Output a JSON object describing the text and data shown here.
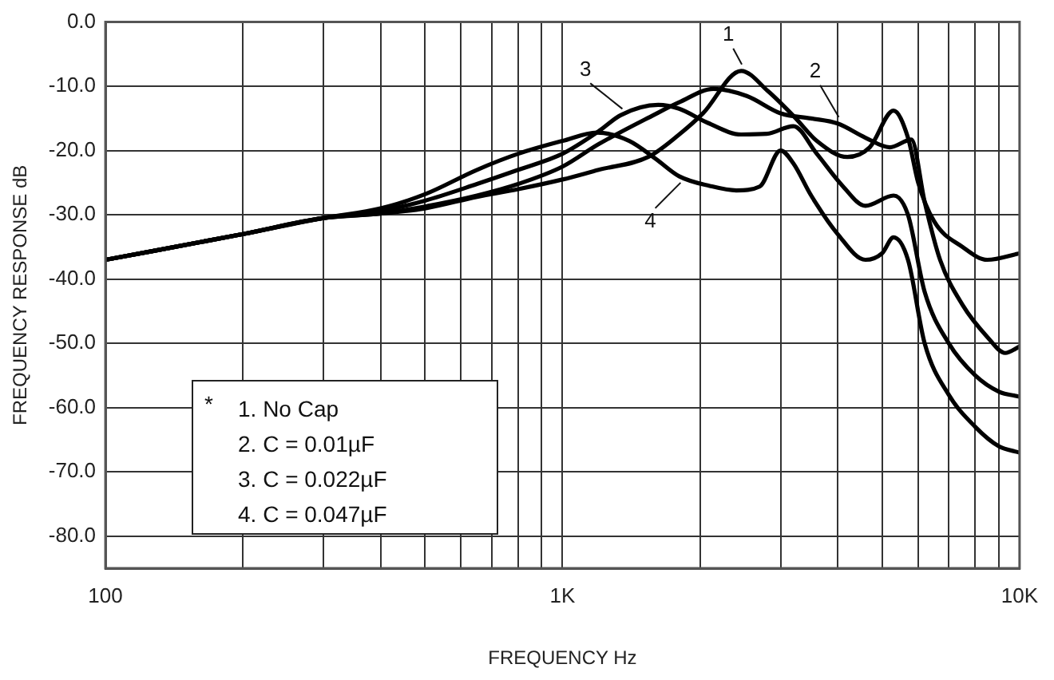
{
  "chart_data": {
    "type": "line",
    "xlabel": "FREQUENCY Hz",
    "ylabel": "FREQUENCY RESPONSE dB",
    "log": "x",
    "grid": true,
    "marker": "none",
    "line_style": "solid",
    "legend": false,
    "xlim": [
      100,
      10000
    ],
    "ylim": [
      -85,
      0
    ],
    "xticks": [
      {
        "value": 100,
        "label": "100"
      },
      {
        "value": 200,
        "label": null
      },
      {
        "value": 300,
        "label": null
      },
      {
        "value": 400,
        "label": null
      },
      {
        "value": 500,
        "label": null
      },
      {
        "value": 600,
        "label": null
      },
      {
        "value": 700,
        "label": null
      },
      {
        "value": 800,
        "label": null
      },
      {
        "value": 900,
        "label": null
      },
      {
        "value": 1000,
        "label": "1K"
      },
      {
        "value": 2000,
        "label": null
      },
      {
        "value": 3000,
        "label": null
      },
      {
        "value": 4000,
        "label": null
      },
      {
        "value": 5000,
        "label": null
      },
      {
        "value": 6000,
        "label": null
      },
      {
        "value": 7000,
        "label": null
      },
      {
        "value": 8000,
        "label": null
      },
      {
        "value": 9000,
        "label": null
      },
      {
        "value": 10000,
        "label": "10K"
      }
    ],
    "yticks": [
      {
        "value": 0,
        "label": "0.0"
      },
      {
        "value": -10,
        "label": "-10.0"
      },
      {
        "value": -20,
        "label": "-20.0"
      },
      {
        "value": -30,
        "label": "-30.0"
      },
      {
        "value": -40,
        "label": "-40.0"
      },
      {
        "value": -50,
        "label": "-50.0"
      },
      {
        "value": -60,
        "label": "-60.0"
      },
      {
        "value": -70,
        "label": "-70.0"
      },
      {
        "value": -80,
        "label": "-80.0"
      }
    ],
    "annotations": [
      "*",
      "1. No Cap",
      "2. C = 0.01µF",
      "3. C = 0.022µF",
      "4. C = 0.047µF"
    ],
    "series": [
      {
        "name": "1",
        "color": "#000000",
        "x": [
          100,
          200,
          300,
          400,
          500,
          650,
          800,
          1000,
          1200,
          1540,
          1800,
          2030,
          2460,
          2820,
          3230,
          3600,
          4200,
          4700,
          5300,
          5700,
          6000,
          6500,
          7500,
          8500,
          10000
        ],
        "values": [
          -37,
          -33,
          -30.5,
          -29.8,
          -29,
          -27.2,
          -26,
          -24.5,
          -23,
          -21,
          -17.5,
          -14.2,
          -7.6,
          -10.8,
          -14.9,
          -18.5,
          -21,
          -19.5,
          -13.8,
          -18,
          -25,
          -31,
          -35,
          -37,
          -36
        ]
      },
      {
        "name": "2",
        "color": "#000000",
        "x": [
          100,
          200,
          300,
          400,
          500,
          650,
          800,
          1000,
          1200,
          1580,
          1800,
          2140,
          2530,
          3000,
          3500,
          4000,
          4600,
          5200,
          5800,
          6200,
          6700,
          7500,
          8500,
          9300,
          10000
        ],
        "values": [
          -37,
          -33,
          -30.5,
          -29.8,
          -28.7,
          -27,
          -25.2,
          -22.5,
          -19,
          -14.5,
          -12.5,
          -10.4,
          -11.5,
          -14.2,
          -15,
          -15.8,
          -18,
          -19.5,
          -18.3,
          -28,
          -37,
          -44,
          -49,
          -51.5,
          -50.5
        ]
      },
      {
        "name": "3",
        "color": "#000000",
        "x": [
          100,
          200,
          300,
          400,
          500,
          650,
          800,
          1000,
          1200,
          1340,
          1620,
          1800,
          2080,
          2460,
          2800,
          3200,
          3600,
          4100,
          4600,
          5300,
          5700,
          6200,
          7000,
          8000,
          9000,
          10000
        ],
        "values": [
          -37,
          -33,
          -30.5,
          -29.4,
          -27.8,
          -25.2,
          -23,
          -20.5,
          -17,
          -14.5,
          -12.9,
          -13.5,
          -15.7,
          -17.5,
          -17.4,
          -16.2,
          -20.5,
          -25.5,
          -28.6,
          -27,
          -30,
          -42,
          -50,
          -55,
          -57.5,
          -58.3
        ]
      },
      {
        "name": "4",
        "color": "#000000",
        "x": [
          100,
          200,
          300,
          400,
          500,
          650,
          800,
          1000,
          1190,
          1400,
          1600,
          1800,
          2100,
          2400,
          2700,
          3000,
          3200,
          3500,
          4000,
          4600,
          5000,
          5300,
          5700,
          6200,
          7000,
          8000,
          9000,
          10000
        ],
        "values": [
          -37,
          -33,
          -30.5,
          -29,
          -26.8,
          -23,
          -20.5,
          -18.5,
          -17.2,
          -18.5,
          -21.3,
          -24,
          -25.5,
          -26.2,
          -25.6,
          -20,
          -22,
          -27,
          -33,
          -37,
          -36,
          -33.5,
          -37,
          -50,
          -58,
          -63,
          -66,
          -67
        ]
      }
    ]
  }
}
